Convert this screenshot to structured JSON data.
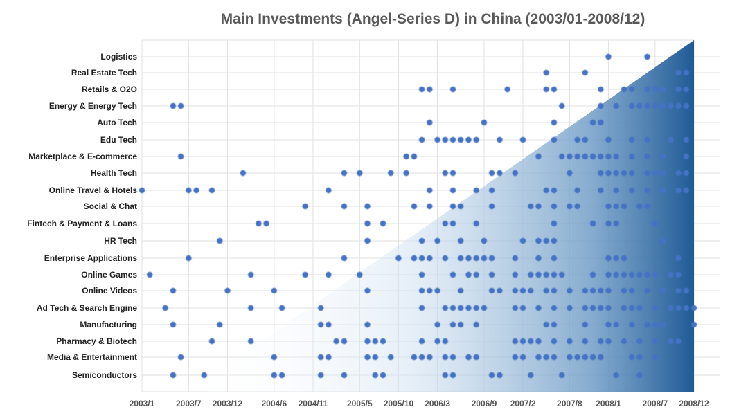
{
  "chart_data": {
    "type": "scatter",
    "title": "Main Investments (Angel-Series D) in China (2003/01-2008/12)",
    "xlabel": "",
    "ylabel": "",
    "x_tick_labels": [
      "2003/1",
      "2003/7",
      "2003/12",
      "2004/6",
      "2004/11",
      "2005/5",
      "2005/10",
      "2006/3",
      "2006/9",
      "2007/2",
      "2007/8",
      "2008/1",
      "2008/7",
      "2008/12"
    ],
    "xlim": [
      "2003/1",
      "2008/12"
    ],
    "categories": [
      "Semiconductors",
      "Media & Entertainment",
      "Pharmacy & Biotech",
      "Manufacturing",
      "Ad Tech & Search Engine",
      "Online Videos",
      "Online Games",
      "Enterprise Applications",
      "HR Tech",
      "Fintech & Payment & Loans",
      "Social & Chat",
      "Online Travel & Hotels",
      "Health Tech",
      "Marketplace & E-commerce",
      "Edu Tech",
      "Auto Tech",
      "Energy & Energy Tech",
      "Retails & O2O",
      "Real Estate Tech",
      "Logistics"
    ],
    "grid": true,
    "legend": "none",
    "point_color": "#4472c4",
    "background_gradient": [
      "#ffffff",
      "#1f5a96"
    ],
    "series": [
      {
        "category": "Semiconductors",
        "x": [
          "2003/5",
          "2003/9",
          "2004/6",
          "2004/7",
          "2004/12",
          "2005/3",
          "2005/7",
          "2005/8",
          "2006/4",
          "2006/5",
          "2006/10",
          "2006/11",
          "2007/3",
          "2007/7",
          "2008/2",
          "2008/5"
        ]
      },
      {
        "category": "Media & Entertainment",
        "x": [
          "2003/6",
          "2004/6",
          "2004/12",
          "2005/1",
          "2005/6",
          "2005/7",
          "2005/9",
          "2005/12",
          "2006/1",
          "2006/2",
          "2006/4",
          "2006/5",
          "2006/7",
          "2006/8",
          "2007/1",
          "2007/2",
          "2007/4",
          "2007/5",
          "2007/6",
          "2007/8",
          "2007/9",
          "2007/10",
          "2007/11",
          "2007/12",
          "2008/4",
          "2008/5",
          "2008/7"
        ]
      },
      {
        "category": "Pharmacy & Biotech",
        "x": [
          "2003/10",
          "2004/3",
          "2005/2",
          "2005/3",
          "2005/6",
          "2005/7",
          "2005/8",
          "2006/1",
          "2006/3",
          "2006/4",
          "2007/1",
          "2007/2",
          "2007/3",
          "2007/4",
          "2007/6",
          "2007/8",
          "2007/10",
          "2007/12",
          "2008/1",
          "2008/3",
          "2008/5",
          "2008/7",
          "2008/9",
          "2008/10"
        ]
      },
      {
        "category": "Manufacturing",
        "x": [
          "2003/5",
          "2003/11",
          "2004/12",
          "2005/1",
          "2005/6",
          "2006/3",
          "2006/5",
          "2006/6",
          "2006/8",
          "2007/5",
          "2007/6",
          "2007/10",
          "2008/1",
          "2008/2",
          "2008/4",
          "2008/6",
          "2008/7",
          "2008/8",
          "2008/12"
        ]
      },
      {
        "category": "Ad Tech & Search Engine",
        "x": [
          "2003/4",
          "2004/3",
          "2004/7",
          "2004/12",
          "2006/1",
          "2006/4",
          "2006/5",
          "2006/6",
          "2006/7",
          "2006/8",
          "2006/9",
          "2007/1",
          "2007/2",
          "2007/4",
          "2007/6",
          "2007/8",
          "2007/10",
          "2007/11",
          "2007/12",
          "2008/1",
          "2008/3",
          "2008/4",
          "2008/5",
          "2008/7",
          "2008/9",
          "2008/10",
          "2008/11",
          "2008/12"
        ]
      },
      {
        "category": "Online Videos",
        "x": [
          "2003/5",
          "2003/12",
          "2004/6",
          "2005/6",
          "2006/1",
          "2006/2",
          "2006/3",
          "2006/6",
          "2006/10",
          "2006/11",
          "2007/1",
          "2007/2",
          "2007/3",
          "2007/5",
          "2007/6",
          "2007/8",
          "2007/10",
          "2007/11",
          "2007/12",
          "2008/1",
          "2008/3",
          "2008/4",
          "2008/6",
          "2008/8",
          "2008/10",
          "2008/11"
        ]
      },
      {
        "category": "Online Games",
        "x": [
          "2003/2",
          "2004/3",
          "2004/10",
          "2005/1",
          "2005/5",
          "2006/1",
          "2006/5",
          "2006/7",
          "2006/8",
          "2006/10",
          "2007/1",
          "2007/3",
          "2007/4",
          "2007/5",
          "2007/6",
          "2007/7",
          "2007/11",
          "2008/1",
          "2008/2",
          "2008/3",
          "2008/4",
          "2008/5",
          "2008/6",
          "2008/7",
          "2008/9",
          "2008/10"
        ]
      },
      {
        "category": "Enterprise Applications",
        "x": [
          "2003/7",
          "2005/3",
          "2005/10",
          "2005/12",
          "2006/1",
          "2006/2",
          "2006/4",
          "2006/6",
          "2006/7",
          "2006/8",
          "2006/9",
          "2006/10",
          "2007/1",
          "2007/4",
          "2007/6",
          "2008/1",
          "2008/2",
          "2008/3",
          "2008/10"
        ]
      },
      {
        "category": "HR Tech",
        "x": [
          "2003/11",
          "2005/6",
          "2006/1",
          "2006/3",
          "2006/6",
          "2006/9",
          "2007/2",
          "2007/4",
          "2007/5",
          "2007/6",
          "2008/8"
        ]
      },
      {
        "category": "Fintech & Payment & Loans",
        "x": [
          "2004/4",
          "2004/5",
          "2005/6",
          "2005/8",
          "2006/4",
          "2006/5",
          "2006/8",
          "2007/6",
          "2007/11",
          "2008/1",
          "2008/2",
          "2008/7"
        ]
      },
      {
        "category": "Social & Chat",
        "x": [
          "2004/10",
          "2005/3",
          "2005/6",
          "2005/12",
          "2006/2",
          "2006/5",
          "2006/6",
          "2006/10",
          "2007/3",
          "2007/4",
          "2007/6",
          "2007/8",
          "2007/9",
          "2008/1",
          "2008/2",
          "2008/3",
          "2008/5",
          "2008/6"
        ]
      },
      {
        "category": "Online Travel & Hotels",
        "x": [
          "2003/1",
          "2003/7",
          "2003/8",
          "2003/10",
          "2005/1",
          "2006/2",
          "2006/5",
          "2006/8",
          "2006/10",
          "2007/5",
          "2007/6",
          "2007/9",
          "2007/12",
          "2008/2",
          "2008/4",
          "2008/6",
          "2008/8",
          "2008/10",
          "2008/11"
        ]
      },
      {
        "category": "Health Tech",
        "x": [
          "2004/2",
          "2005/3",
          "2005/5",
          "2005/9",
          "2005/11",
          "2006/4",
          "2006/5",
          "2006/10",
          "2006/11",
          "2007/1",
          "2007/8",
          "2007/12",
          "2008/1",
          "2008/2",
          "2008/3",
          "2008/4",
          "2008/6",
          "2008/7",
          "2008/8",
          "2008/10",
          "2008/11"
        ]
      },
      {
        "category": "Marketplace & E-commerce",
        "x": [
          "2003/6",
          "2005/11",
          "2005/12",
          "2007/4",
          "2007/7",
          "2007/8",
          "2007/9",
          "2007/10",
          "2007/11",
          "2007/12",
          "2008/1",
          "2008/2",
          "2008/4",
          "2008/6",
          "2008/8",
          "2008/11"
        ]
      },
      {
        "category": "Edu Tech",
        "x": [
          "2006/1",
          "2006/3",
          "2006/4",
          "2006/5",
          "2006/6",
          "2006/7",
          "2006/8",
          "2006/11",
          "2007/2",
          "2007/6",
          "2007/9",
          "2007/10",
          "2008/1",
          "2008/4",
          "2008/6",
          "2008/9",
          "2008/11"
        ]
      },
      {
        "category": "Auto Tech",
        "x": [
          "2006/2",
          "2006/9",
          "2007/6",
          "2007/11",
          "2007/12"
        ]
      },
      {
        "category": "Energy & Energy Tech",
        "x": [
          "2003/5",
          "2003/6",
          "2007/7",
          "2007/12",
          "2008/2",
          "2008/4",
          "2008/5",
          "2008/6",
          "2008/7",
          "2008/8",
          "2008/9",
          "2008/10",
          "2008/11"
        ]
      },
      {
        "category": "Retails & O2O",
        "x": [
          "2006/1",
          "2006/2",
          "2006/5",
          "2006/12",
          "2007/5",
          "2007/6",
          "2007/12",
          "2008/3",
          "2008/4",
          "2008/6",
          "2008/7",
          "2008/8",
          "2008/10",
          "2008/11"
        ]
      },
      {
        "category": "Real Estate Tech",
        "x": [
          "2007/5",
          "2007/10",
          "2008/10",
          "2008/11"
        ]
      },
      {
        "category": "Logistics",
        "x": [
          "2008/1",
          "2008/6"
        ]
      }
    ]
  }
}
